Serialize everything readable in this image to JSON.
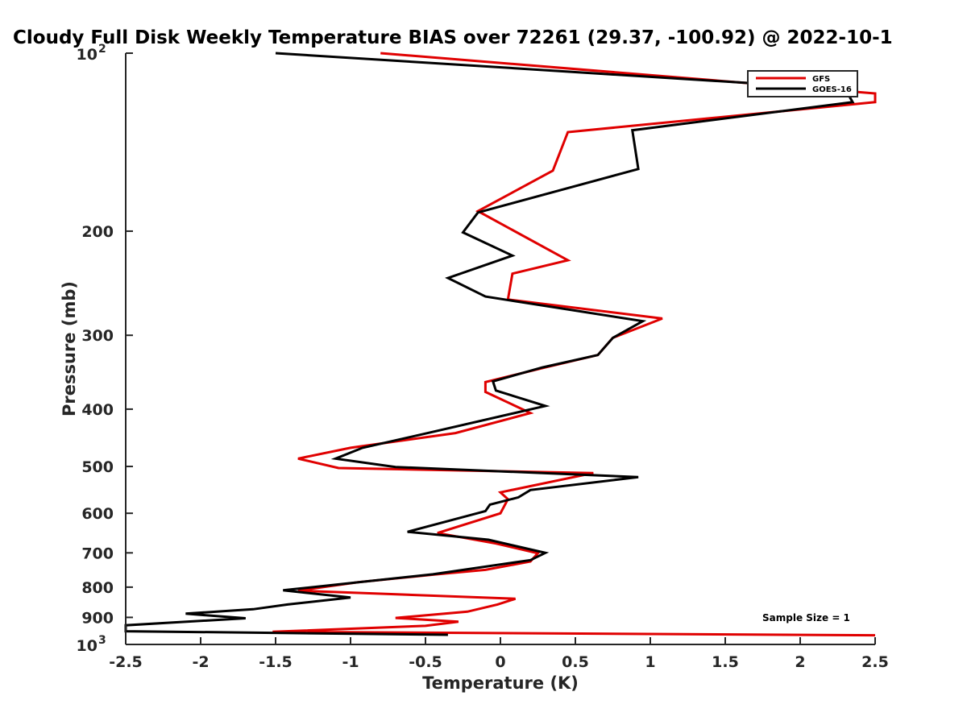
{
  "chart_data": {
    "type": "line",
    "title": "Cloudy Full Disk Weekly Temperature BIAS over 72261 (29.37, -100.92) @ 2022-10-1",
    "xlabel": "Temperature (K)",
    "ylabel": "Pressure (mb)",
    "xlim": [
      -2.5,
      2.5
    ],
    "ylim": [
      100,
      1000
    ],
    "y_scale": "log",
    "y_reversed": true,
    "grid": false,
    "legend_position": "top-right",
    "x_ticks": [
      {
        "value": -2.5,
        "label": "-2.5"
      },
      {
        "value": -2,
        "label": "-2"
      },
      {
        "value": -1.5,
        "label": "-1.5"
      },
      {
        "value": -1,
        "label": "-1"
      },
      {
        "value": -0.5,
        "label": "-0.5"
      },
      {
        "value": 0,
        "label": "0"
      },
      {
        "value": 0.5,
        "label": "0.5"
      },
      {
        "value": 1,
        "label": "1"
      },
      {
        "value": 1.5,
        "label": "1.5"
      },
      {
        "value": 2,
        "label": "2"
      },
      {
        "value": 2.5,
        "label": "2.5"
      }
    ],
    "y_ticks": [
      {
        "value": 100,
        "base": "10",
        "exp": "2"
      },
      {
        "value": 200,
        "label": "200"
      },
      {
        "value": 300,
        "label": "300"
      },
      {
        "value": 400,
        "label": "400"
      },
      {
        "value": 500,
        "label": "500"
      },
      {
        "value": 600,
        "label": "600"
      },
      {
        "value": 700,
        "label": "700"
      },
      {
        "value": 800,
        "label": "800"
      },
      {
        "value": 900,
        "label": "900"
      },
      {
        "value": 1000,
        "base": "10",
        "exp": "3"
      }
    ],
    "annotation": "Sample Size = 1",
    "series": [
      {
        "name": "GFS",
        "color": "#e00000",
        "points": [
          [
            -0.8,
            100
          ],
          [
            2.5,
            117
          ],
          [
            2.5,
            121
          ],
          [
            0.45,
            136
          ],
          [
            0.35,
            158
          ],
          [
            -0.15,
            185
          ],
          [
            0.45,
            224
          ],
          [
            0.08,
            236
          ],
          [
            0.05,
            261
          ],
          [
            1.08,
            281
          ],
          [
            0.75,
            303
          ],
          [
            0.65,
            324
          ],
          [
            0.3,
            340
          ],
          [
            -0.1,
            360
          ],
          [
            -0.1,
            374
          ],
          [
            0.2,
            406
          ],
          [
            -0.3,
            439
          ],
          [
            -1.0,
            465
          ],
          [
            -1.35,
            485
          ],
          [
            -1.08,
            503
          ],
          [
            0.62,
            513
          ],
          [
            0.0,
            553
          ],
          [
            0.05,
            568
          ],
          [
            0.0,
            600
          ],
          [
            -0.42,
            648
          ],
          [
            -0.03,
            675
          ],
          [
            0.25,
            701
          ],
          [
            0.2,
            724
          ],
          [
            -0.1,
            748
          ],
          [
            -0.45,
            762
          ],
          [
            -0.95,
            785
          ],
          [
            -1.35,
            811
          ],
          [
            0.1,
            837
          ],
          [
            -0.02,
            856
          ],
          [
            -0.22,
            880
          ],
          [
            -0.7,
            902
          ],
          [
            -0.28,
            915
          ],
          [
            -0.5,
            930
          ],
          [
            -1.52,
            952
          ],
          [
            2.5,
            965
          ]
        ]
      },
      {
        "name": "GOES-16",
        "color": "#000000",
        "points": [
          [
            -1.5,
            100
          ],
          [
            2.3,
            115
          ],
          [
            2.35,
            121
          ],
          [
            0.88,
            135
          ],
          [
            0.92,
            157
          ],
          [
            -0.15,
            186
          ],
          [
            -0.25,
            201
          ],
          [
            0.08,
            220
          ],
          [
            -0.35,
            240
          ],
          [
            -0.1,
            258
          ],
          [
            0.95,
            284
          ],
          [
            0.75,
            303
          ],
          [
            0.65,
            324
          ],
          [
            0.28,
            340
          ],
          [
            -0.05,
            359
          ],
          [
            -0.03,
            372
          ],
          [
            0.3,
            395
          ],
          [
            -0.45,
            437
          ],
          [
            -0.92,
            465
          ],
          [
            -1.1,
            485
          ],
          [
            -0.7,
            501
          ],
          [
            0.92,
            521
          ],
          [
            0.2,
            548
          ],
          [
            0.12,
            564
          ],
          [
            -0.07,
            580
          ],
          [
            -0.1,
            595
          ],
          [
            -0.62,
            645
          ],
          [
            -0.08,
            665
          ],
          [
            0.3,
            700
          ],
          [
            0.2,
            720
          ],
          [
            -0.45,
            761
          ],
          [
            -1.45,
            810
          ],
          [
            -1.0,
            833
          ],
          [
            -1.42,
            856
          ],
          [
            -1.65,
            872
          ],
          [
            -2.1,
            887
          ],
          [
            -1.7,
            903
          ],
          [
            -2.5,
            928
          ],
          [
            -2.5,
            950
          ],
          [
            -0.35,
            963
          ]
        ]
      }
    ]
  }
}
